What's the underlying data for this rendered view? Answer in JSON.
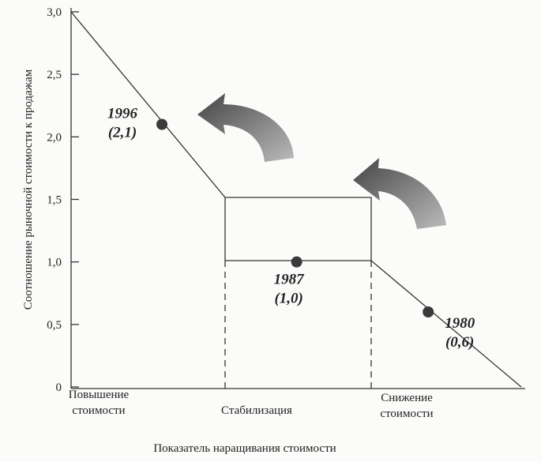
{
  "chart_data": {
    "type": "scatter",
    "y_label": "Соотношение рыночной стоимости к продажам",
    "x_label": "Показатель наращивания стоимости",
    "categories": [
      "Повышение стоимости",
      "Стабилизация",
      "Снижение стоимости"
    ],
    "point_labels": [
      "1996",
      "1987",
      "1980"
    ],
    "values": [
      2.1,
      1.0,
      0.6
    ],
    "value_labels": [
      "(2,1)",
      "(1,0)",
      "(0,6)"
    ],
    "color": "#3a3a3a",
    "ylim": [
      0,
      3
    ],
    "yticks": [
      0,
      {
        "value": 0.5,
        "label": "0,5"
      },
      {
        "value": 1,
        "label": "1,0"
      },
      {
        "value": 1.5,
        "label": "1,5"
      },
      {
        "value": 2,
        "label": "2,0"
      },
      {
        "value": 2.5,
        "label": "2,5"
      },
      {
        "value": 3,
        "label": "3,0"
      }
    ]
  }
}
